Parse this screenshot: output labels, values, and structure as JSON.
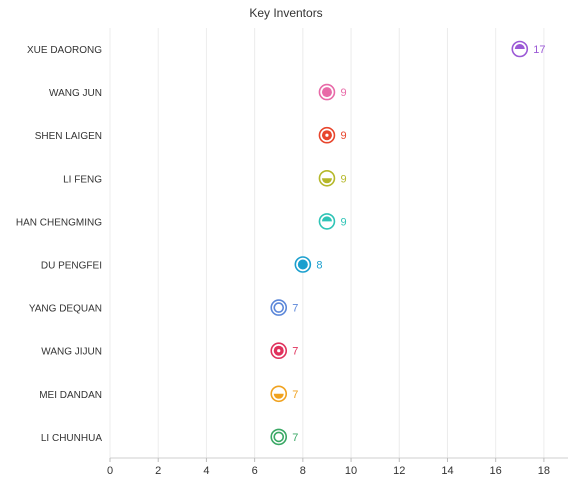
{
  "chart_data": {
    "type": "scatter",
    "title": "Key Inventors",
    "xlim": [
      0,
      19
    ],
    "xticks": [
      0,
      2,
      4,
      6,
      8,
      10,
      12,
      14,
      16,
      18
    ],
    "grid": true,
    "categories": [
      "XUE DAORONG",
      "WANG JUN",
      "SHEN LAIGEN",
      "LI FENG",
      "HAN CHENGMING",
      "DU PENGFEI",
      "YANG DEQUAN",
      "WANG JIJUN",
      "MEI DANDAN",
      "LI CHUNHUA"
    ],
    "values": [
      17,
      9,
      9,
      9,
      9,
      8,
      7,
      7,
      7,
      7
    ],
    "colors": [
      "#9b59d6",
      "#e86aa8",
      "#e8452c",
      "#b5b82a",
      "#2ec4b6",
      "#1a9fce",
      "#5b87d9",
      "#e0315c",
      "#f0a21f",
      "#3aa865"
    ],
    "markers": [
      "half-top",
      "solid-ring",
      "dot",
      "half-bottom",
      "half-top",
      "solid-ring",
      "ring",
      "dot",
      "half-bottom",
      "ring"
    ]
  }
}
